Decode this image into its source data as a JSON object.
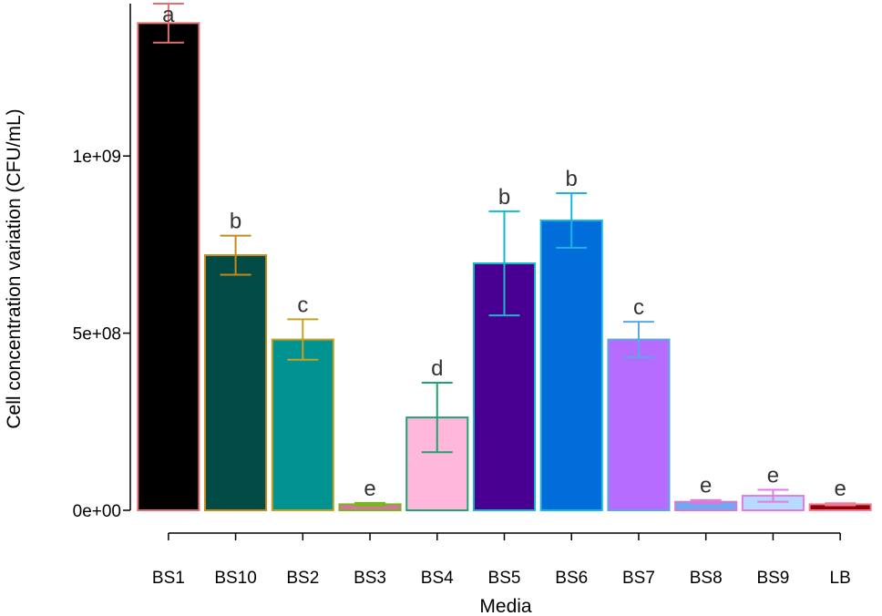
{
  "chart_data": {
    "type": "bar",
    "title": "",
    "xlabel": "Media",
    "ylabel": "Cell concentration variation (CFU/mL)",
    "ylim": [
      0,
      1430000000
    ],
    "yticks": [
      0,
      500000000,
      1000000000
    ],
    "ytick_labels": [
      "0e+00",
      "5e+08",
      "1e+09"
    ],
    "grid": false,
    "categories": [
      "BS1",
      "BS10",
      "BS2",
      "BS3",
      "BS4",
      "BS5",
      "BS6",
      "BS7",
      "BS8",
      "BS9",
      "LB"
    ],
    "values": [
      1375000000,
      720000000,
      482000000,
      17000000,
      262000000,
      697000000,
      818000000,
      482000000,
      24000000,
      41000000,
      17000000
    ],
    "errors": [
      55000000,
      55000000,
      57000000,
      4000000,
      98000000,
      147000000,
      77000000,
      50000000,
      5000000,
      17000000,
      3000000
    ],
    "significance": [
      "a",
      "b",
      "c",
      "e",
      "d",
      "b",
      "b",
      "c",
      "e",
      "e",
      "e"
    ],
    "fill_colors": [
      "#000000",
      "#024b46",
      "#009391",
      "#d8729f",
      "#ffb7db",
      "#490092",
      "#006ddb",
      "#b66dff",
      "#6ea8f0",
      "#b6dbff",
      "#920000"
    ],
    "edge_colors": [
      "#e07070",
      "#c58a1a",
      "#c8a21e",
      "#7ab51e",
      "#1fa36f",
      "#16b9c8",
      "#1bb5e0",
      "#5ba7e6",
      "#d57ad8",
      "#e37ae6",
      "#f07a9a"
    ]
  }
}
